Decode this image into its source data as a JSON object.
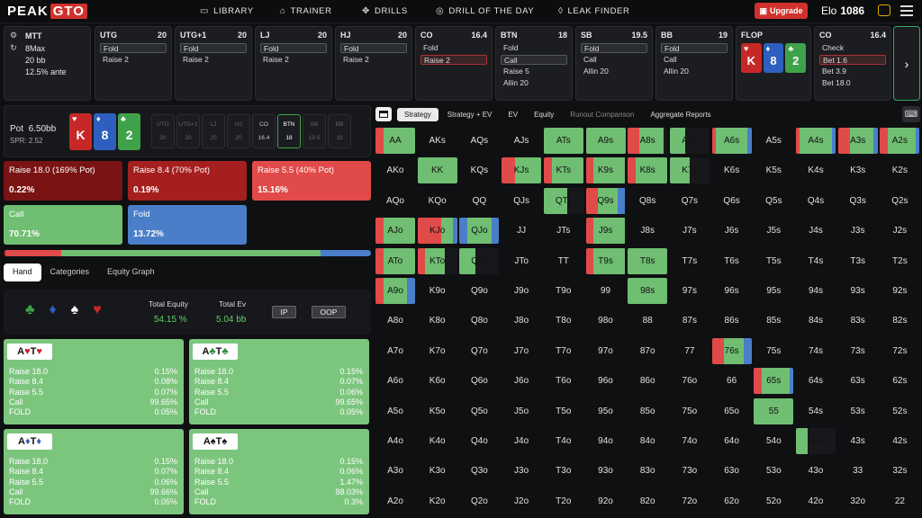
{
  "nav": {
    "brand_a": "PEAK",
    "brand_b": "GTO",
    "items": [
      {
        "icon": "book-icon",
        "glyph": "▭",
        "label": "LIBRARY"
      },
      {
        "icon": "gamepad-icon",
        "glyph": "⌂",
        "label": "TRAINER"
      },
      {
        "icon": "drills-icon",
        "glyph": "✥",
        "label": "DRILLS"
      },
      {
        "icon": "target-icon",
        "glyph": "◎",
        "label": "DRILL OF THE DAY"
      },
      {
        "icon": "drop-icon",
        "glyph": "◊",
        "label": "LEAK FINDER"
      }
    ],
    "upgrade": "Upgrade",
    "elo_label": "Elo",
    "elo_value": "1086"
  },
  "game": {
    "type": "MTT",
    "table": "8Max",
    "stack": "20 bb",
    "ante": "12.5% ante"
  },
  "cards": [
    {
      "pos": "UTG",
      "stack": "20",
      "actions": [
        "Fold",
        "Raise 2"
      ],
      "sel": 0
    },
    {
      "pos": "UTG+1",
      "stack": "20",
      "actions": [
        "Fold",
        "Raise 2"
      ],
      "sel": 0
    },
    {
      "pos": "LJ",
      "stack": "20",
      "actions": [
        "Fold",
        "Raise 2"
      ],
      "sel": 0
    },
    {
      "pos": "HJ",
      "stack": "20",
      "actions": [
        "Fold",
        "Raise 2"
      ],
      "sel": 0
    },
    {
      "pos": "CO",
      "stack": "16.4",
      "actions": [
        "Fold",
        "Raise 2"
      ],
      "sel": 1,
      "red": true
    },
    {
      "pos": "BTN",
      "stack": "18",
      "actions": [
        "Fold",
        "Call",
        "Raise 5",
        "Allin 20"
      ],
      "sel": 1
    },
    {
      "pos": "SB",
      "stack": "19.5",
      "actions": [
        "Fold",
        "Call",
        "Allin 20"
      ],
      "sel": 0
    },
    {
      "pos": "BB",
      "stack": "19",
      "actions": [
        "Fold",
        "Call",
        "Allin 20"
      ],
      "sel": 0
    },
    {
      "pos": "FLOP",
      "stack": "",
      "actions": [],
      "sel": -1
    },
    {
      "pos": "CO",
      "stack": "16.4",
      "actions": [
        "Check",
        "Bet 1.6",
        "Bet 3.9",
        "Bet 18.0"
      ],
      "sel": 1,
      "red": true
    }
  ],
  "flop": [
    {
      "rank": "K",
      "suit": "♥",
      "color": "red"
    },
    {
      "rank": "8",
      "suit": "♦",
      "color": "blue"
    },
    {
      "rank": "2",
      "suit": "♣",
      "color": "green"
    }
  ],
  "pot": {
    "label": "Pot",
    "value": "6.50bb",
    "spr": "SPR: 2.52"
  },
  "seats": [
    {
      "pos": "UTG",
      "stack": "20"
    },
    {
      "pos": "UTG+1",
      "stack": "20"
    },
    {
      "pos": "LJ",
      "stack": "20"
    },
    {
      "pos": "HJ",
      "stack": "20"
    },
    {
      "pos": "CO",
      "stack": "16.4"
    },
    {
      "pos": "BTN",
      "stack": "18"
    },
    {
      "pos": "SB",
      "stack": "19.5"
    },
    {
      "pos": "BB",
      "stack": "19"
    }
  ],
  "strategy": [
    {
      "label": "Raise 18.0 (169% Pot)",
      "value": "0.22%",
      "color": "#7a1313"
    },
    {
      "label": "Raise 8.4 (70% Pot)",
      "value": "0.19%",
      "color": "#a51f1f"
    },
    {
      "label": "Raise 5.5 (40% Pot)",
      "value": "15.16%",
      "color": "#e04a48"
    },
    {
      "label": "Call",
      "value": "70.71%",
      "color": "#6fbe72"
    },
    {
      "label": "Fold",
      "value": "13.72%",
      "color": "#4a7ec9"
    }
  ],
  "freq": [
    0.22,
    0.19,
    15.16,
    70.71,
    13.72
  ],
  "tabs": [
    "Hand",
    "Categories",
    "Equity Graph"
  ],
  "equity": {
    "suits": [
      {
        "g": "♣",
        "c": "#3fa24a",
        "n": "clubs-icon"
      },
      {
        "g": "♦",
        "c": "#2e5fbf",
        "n": "diamonds-icon"
      },
      {
        "g": "♠",
        "c": "#fff",
        "n": "spades-icon"
      },
      {
        "g": "♥",
        "c": "#c62828",
        "n": "hearts-icon"
      }
    ],
    "total_equity_label": "Total Equity",
    "total_equity": "54.15 %",
    "total_ev_label": "Total Ev",
    "total_ev": "5.04 bb",
    "ip": "IP",
    "oop": "OOP"
  },
  "combos": [
    {
      "r1": "A",
      "s1": "♥",
      "c1": "#c62828",
      "r2": "T",
      "s2": "♥",
      "c2": "#c62828",
      "rows": [
        [
          "Raise 18.0",
          "0.15%"
        ],
        [
          "Raise 8.4",
          "0.08%"
        ],
        [
          "Raise 5.5",
          "0.07%"
        ],
        [
          "Call",
          "99.65%"
        ],
        [
          "FOLD",
          "0.05%"
        ]
      ]
    },
    {
      "r1": "A",
      "s1": "♣",
      "c1": "#2e8b3a",
      "r2": "T",
      "s2": "♣",
      "c2": "#2e8b3a",
      "rows": [
        [
          "Raise 18.0",
          "0.15%"
        ],
        [
          "Raise 8.4",
          "0.07%"
        ],
        [
          "Raise 5.5",
          "0.06%"
        ],
        [
          "Call",
          "99.65%"
        ],
        [
          "FOLD",
          "0.05%"
        ]
      ]
    },
    {
      "r1": "A",
      "s1": "♦",
      "c1": "#2e5fbf",
      "r2": "T",
      "s2": "♦",
      "c2": "#2e5fbf",
      "rows": [
        [
          "Raise 18.0",
          "0.15%"
        ],
        [
          "Raise 8.4",
          "0.07%"
        ],
        [
          "Raise 5.5",
          "0.06%"
        ],
        [
          "Call",
          "99.66%"
        ],
        [
          "FOLD",
          "0.05%"
        ]
      ]
    },
    {
      "r1": "A",
      "s1": "♠",
      "c1": "#111",
      "r2": "T",
      "s2": "♠",
      "c2": "#111",
      "rows": [
        [
          "Raise 18.0",
          "0.15%"
        ],
        [
          "Raise 8.4",
          "0.06%"
        ],
        [
          "Raise 5.5",
          "1.47%"
        ],
        [
          "Call",
          "98.03%"
        ],
        [
          "FOLD",
          "0.3%"
        ]
      ]
    }
  ],
  "toolbar": [
    "Strategy",
    "Strategy + EV",
    "EV",
    "Equity",
    "Runout Comparison",
    "Aggregate Reports"
  ],
  "ranks": [
    "A",
    "K",
    "Q",
    "J",
    "T",
    "9",
    "8",
    "7",
    "6",
    "5",
    "4",
    "3",
    "2"
  ],
  "matrix": {
    "AA": [
      [
        0.2,
        "r"
      ],
      [
        0.8,
        "g"
      ]
    ],
    "ATs": [
      [
        1,
        "g"
      ]
    ],
    "A9s": [
      [
        1,
        "g"
      ]
    ],
    "A8s": [
      [
        0.3,
        "r"
      ],
      [
        0.6,
        "g"
      ]
    ],
    "A7s": [
      [
        0.4,
        "g"
      ]
    ],
    "A6s": [
      [
        0.1,
        "r"
      ],
      [
        0.8,
        "g"
      ],
      [
        0.1,
        "b"
      ]
    ],
    "A4s": [
      [
        0.1,
        "r"
      ],
      [
        0.8,
        "g"
      ],
      [
        0.1,
        "b"
      ]
    ],
    "A3s": [
      [
        0.3,
        "r"
      ],
      [
        0.6,
        "g"
      ],
      [
        0.1,
        "b"
      ]
    ],
    "A2s": [
      [
        0.2,
        "r"
      ],
      [
        0.7,
        "g"
      ],
      [
        0.1,
        "b"
      ]
    ],
    "KK": [
      [
        1,
        "g"
      ]
    ],
    "KJs": [
      [
        0.35,
        "r"
      ],
      [
        0.65,
        "g"
      ]
    ],
    "KTs": [
      [
        0.2,
        "r"
      ],
      [
        0.8,
        "g"
      ]
    ],
    "K9s": [
      [
        0.2,
        "r"
      ],
      [
        0.8,
        "g"
      ]
    ],
    "K8s": [
      [
        0.2,
        "r"
      ],
      [
        0.8,
        "g"
      ]
    ],
    "K7s": [
      [
        0.5,
        "g"
      ]
    ],
    "QTs": [
      [
        0.6,
        "g"
      ]
    ],
    "Q9s": [
      [
        0.3,
        "r"
      ],
      [
        0.5,
        "g"
      ],
      [
        0.2,
        "b"
      ]
    ],
    "AJo": [
      [
        0.2,
        "r"
      ],
      [
        0.8,
        "g"
      ]
    ],
    "KJo": [
      [
        0.6,
        "r"
      ],
      [
        0.3,
        "g"
      ],
      [
        0.1,
        "b"
      ]
    ],
    "QJo": [
      [
        0.2,
        "b"
      ],
      [
        0.6,
        "g"
      ],
      [
        0.2,
        "b"
      ]
    ],
    "J9s": [
      [
        0.2,
        "r"
      ],
      [
        0.8,
        "g"
      ]
    ],
    "ATo": [
      [
        0.2,
        "r"
      ],
      [
        0.8,
        "g"
      ]
    ],
    "KTo": [
      [
        0.2,
        "r"
      ],
      [
        0.5,
        "g"
      ]
    ],
    "QTo": [
      [
        0.4,
        "g"
      ]
    ],
    "T9s": [
      [
        0.2,
        "r"
      ],
      [
        0.8,
        "g"
      ]
    ],
    "T8s": [
      [
        1,
        "g"
      ]
    ],
    "A9o": [
      [
        0.2,
        "r"
      ],
      [
        0.6,
        "g"
      ],
      [
        0.2,
        "b"
      ]
    ],
    "98s": [
      [
        1,
        "g"
      ]
    ],
    "76s": [
      [
        0.3,
        "r"
      ],
      [
        0.5,
        "g"
      ],
      [
        0.2,
        "b"
      ]
    ],
    "65s": [
      [
        0.2,
        "r"
      ],
      [
        0.7,
        "g"
      ],
      [
        0.1,
        "b"
      ]
    ],
    "55": [
      [
        1,
        "g"
      ]
    ],
    "44": [
      [
        0.3,
        "g"
      ]
    ]
  }
}
